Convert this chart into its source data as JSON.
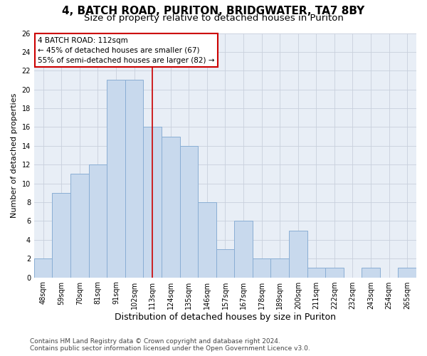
{
  "title": "4, BATCH ROAD, PURITON, BRIDGWATER, TA7 8BY",
  "subtitle": "Size of property relative to detached houses in Puriton",
  "xlabel": "Distribution of detached houses by size in Puriton",
  "ylabel": "Number of detached properties",
  "categories": [
    "48sqm",
    "59sqm",
    "70sqm",
    "81sqm",
    "91sqm",
    "102sqm",
    "113sqm",
    "124sqm",
    "135sqm",
    "146sqm",
    "157sqm",
    "167sqm",
    "178sqm",
    "189sqm",
    "200sqm",
    "211sqm",
    "222sqm",
    "232sqm",
    "243sqm",
    "254sqm",
    "265sqm"
  ],
  "values": [
    2,
    9,
    11,
    12,
    21,
    21,
    16,
    15,
    14,
    8,
    3,
    6,
    2,
    2,
    5,
    1,
    1,
    0,
    1,
    0,
    1
  ],
  "bar_color": "#c8d9ed",
  "bar_edge_color": "#8aaed4",
  "grid_color": "#c8d0dc",
  "background_color": "#e8eef6",
  "annotation_text": "4 BATCH ROAD: 112sqm\n← 45% of detached houses are smaller (67)\n55% of semi-detached houses are larger (82) →",
  "annotation_box_color": "#ffffff",
  "annotation_box_edge": "#cc0000",
  "vline_x": 6.0,
  "vline_color": "#cc0000",
  "ylim": [
    0,
    26
  ],
  "yticks": [
    0,
    2,
    4,
    6,
    8,
    10,
    12,
    14,
    16,
    18,
    20,
    22,
    24,
    26
  ],
  "footer": "Contains HM Land Registry data © Crown copyright and database right 2024.\nContains public sector information licensed under the Open Government Licence v3.0.",
  "title_fontsize": 11,
  "subtitle_fontsize": 9.5,
  "xlabel_fontsize": 9,
  "ylabel_fontsize": 8,
  "tick_fontsize": 7,
  "annotation_fontsize": 7.5,
  "footer_fontsize": 6.5
}
